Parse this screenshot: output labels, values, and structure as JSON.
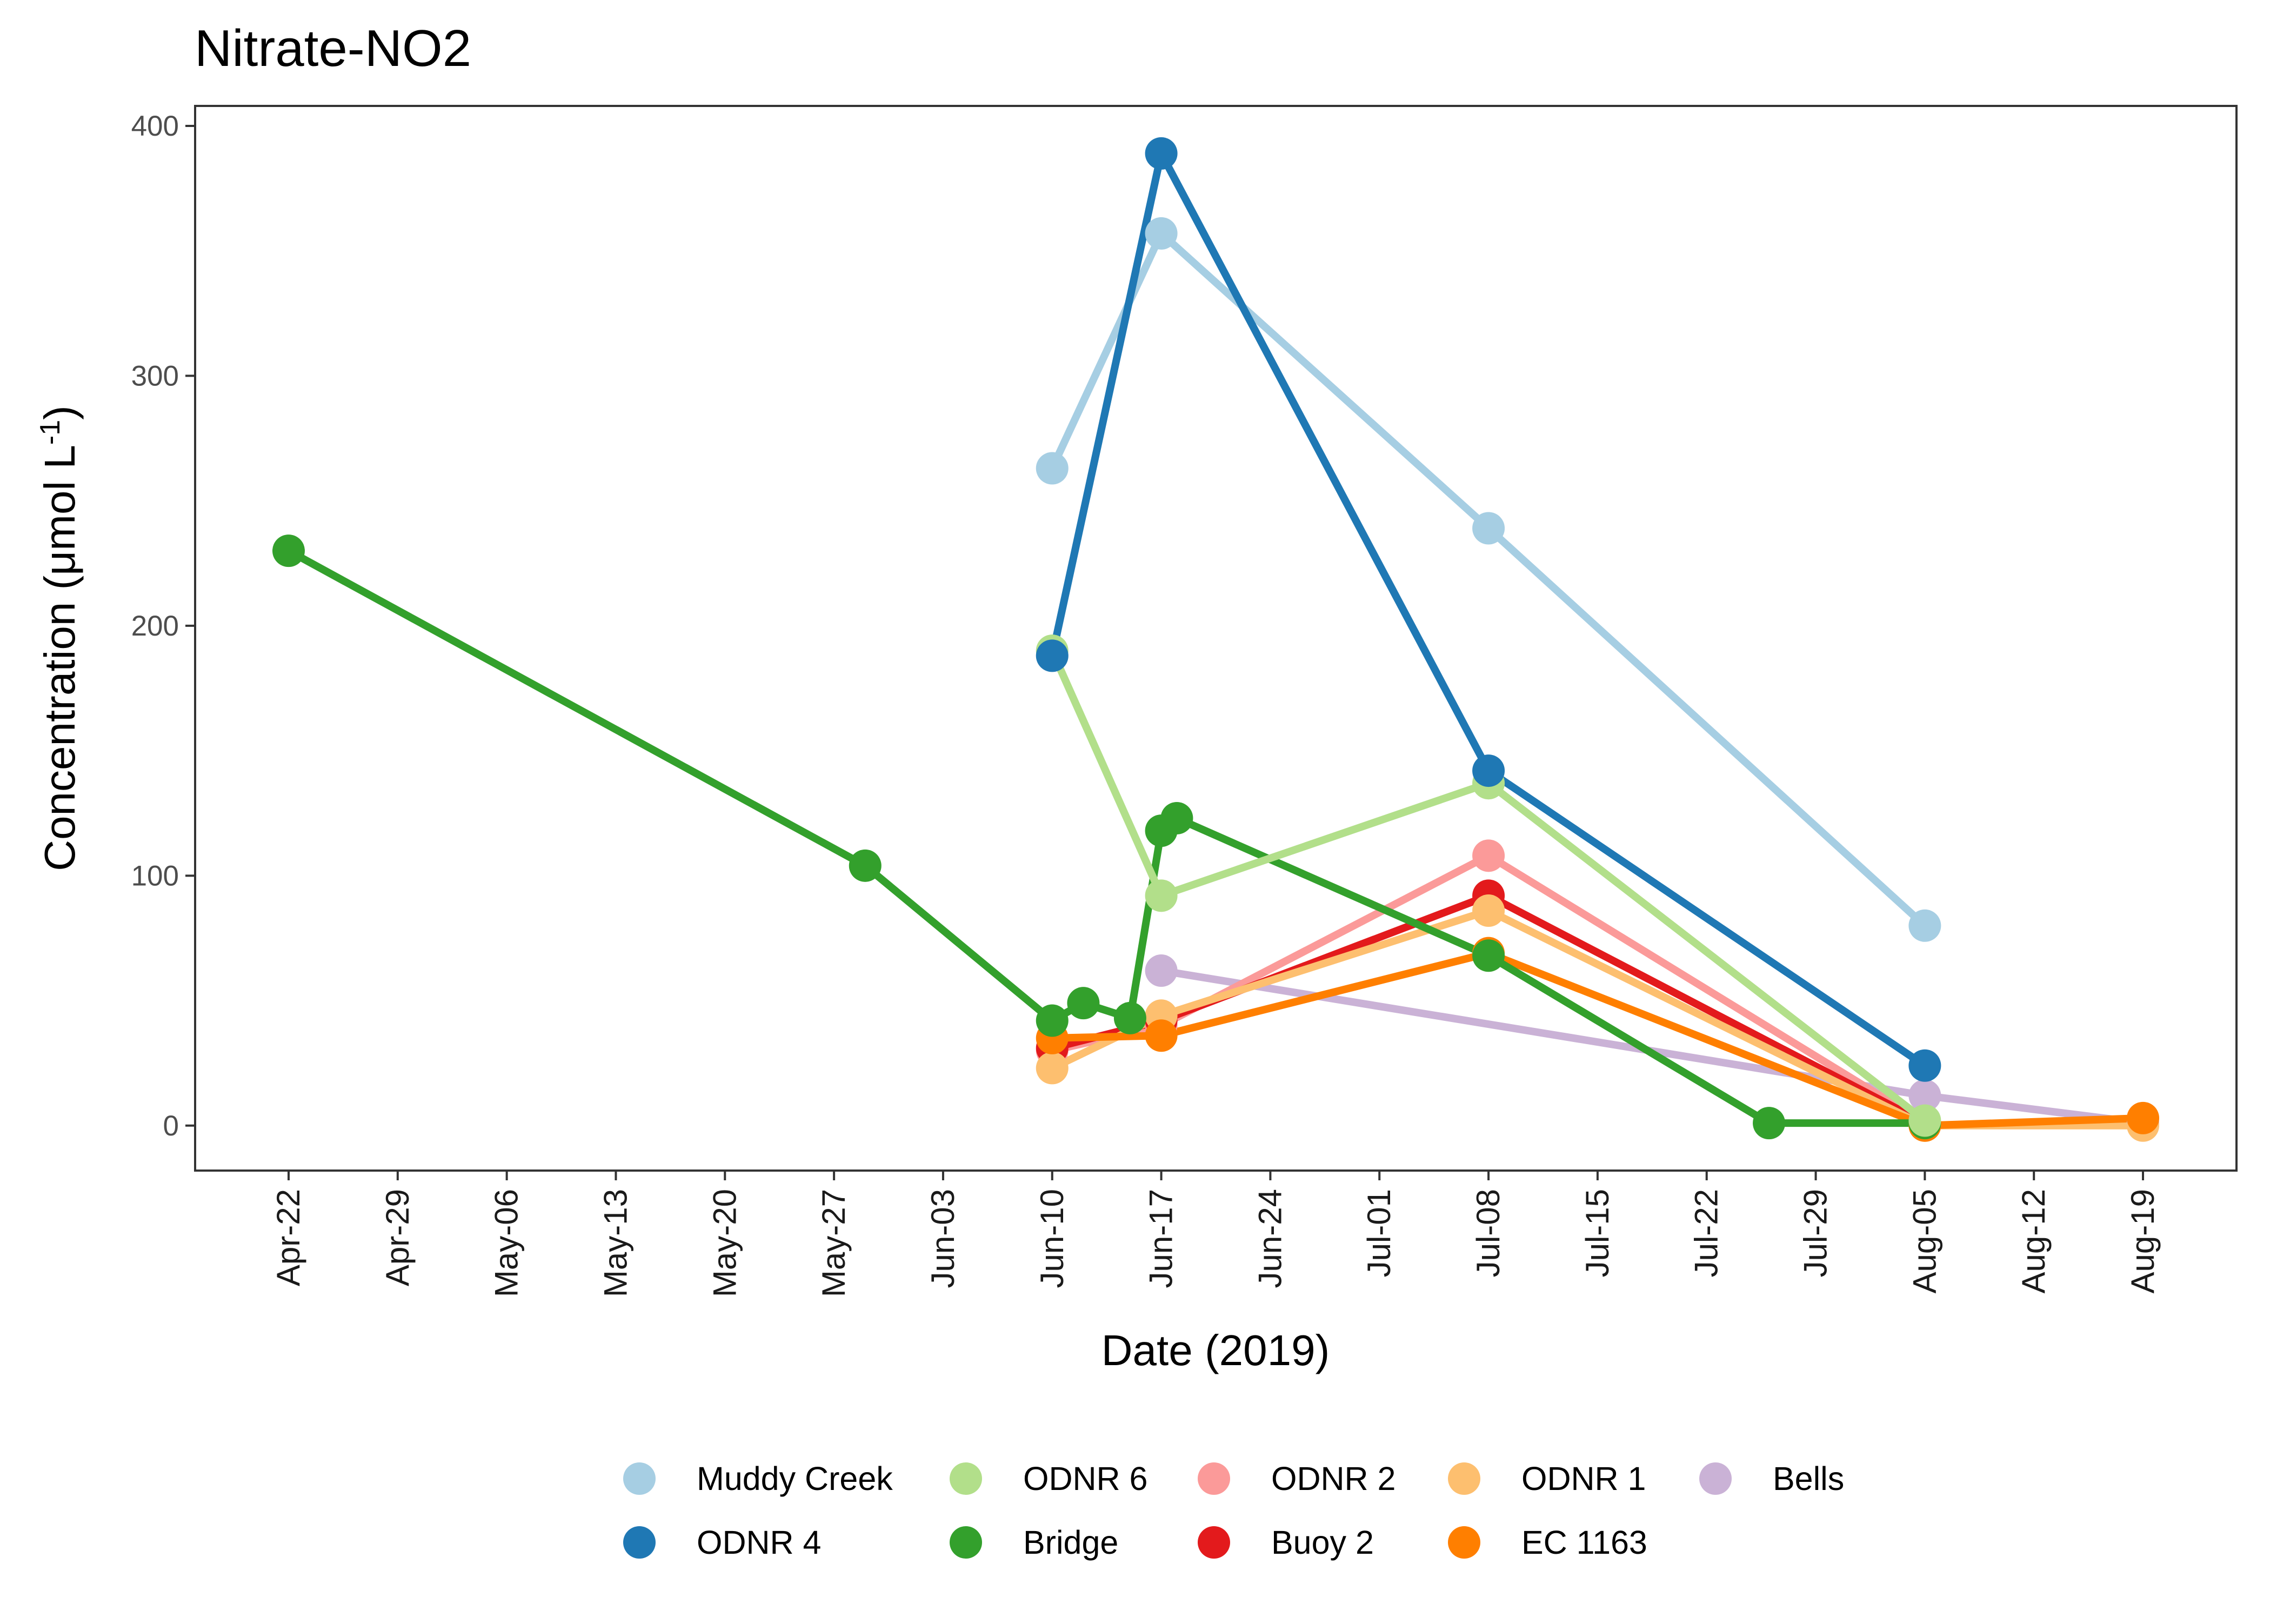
{
  "chart_data": {
    "type": "line",
    "title": "Nitrate-NO2",
    "xlabel": "Date (2019)",
    "ylabel": "Concentration (μmol L⁻¹)",
    "ylabel_parts": {
      "pre": "Concentration (",
      "unit": "μmol L",
      "sup": "-1",
      "post": ")"
    },
    "ylim": [
      -18,
      408
    ],
    "y_ticks": [
      0,
      100,
      200,
      300,
      400
    ],
    "xlim": [
      "2019-04-16",
      "2019-08-25"
    ],
    "x_ticks": [
      "2019-04-22",
      "2019-04-29",
      "2019-05-06",
      "2019-05-13",
      "2019-05-20",
      "2019-05-27",
      "2019-06-03",
      "2019-06-10",
      "2019-06-17",
      "2019-06-24",
      "2019-07-01",
      "2019-07-08",
      "2019-07-15",
      "2019-07-22",
      "2019-07-29",
      "2019-08-05",
      "2019-08-12",
      "2019-08-19"
    ],
    "x_tick_labels": [
      "Apr-22",
      "Apr-29",
      "May-06",
      "May-13",
      "May-20",
      "May-27",
      "Jun-03",
      "Jun-10",
      "Jun-17",
      "Jun-24",
      "Jul-01",
      "Jul-08",
      "Jul-15",
      "Jul-22",
      "Jul-29",
      "Aug-05",
      "Aug-12",
      "Aug-19"
    ],
    "grid": false,
    "legend_position": "bottom",
    "series": [
      {
        "name": "Bells",
        "color": "#cab2d6",
        "points": [
          [
            "2019-06-17",
            62
          ],
          [
            "2019-08-05",
            12
          ],
          [
            "2019-08-19",
            1
          ]
        ]
      },
      {
        "name": "ODNR 2",
        "color": "#fb9a99",
        "points": [
          [
            "2019-06-10",
            30
          ],
          [
            "2019-06-17",
            40
          ],
          [
            "2019-07-08",
            108
          ],
          [
            "2019-08-05",
            1
          ]
        ]
      },
      {
        "name": "Buoy 2",
        "color": "#e31a1c",
        "points": [
          [
            "2019-06-10",
            31
          ],
          [
            "2019-06-17",
            42
          ],
          [
            "2019-07-08",
            92
          ],
          [
            "2019-08-05",
            1
          ]
        ]
      },
      {
        "name": "ODNR 1",
        "color": "#fdbf6f",
        "points": [
          [
            "2019-06-10",
            23
          ],
          [
            "2019-06-17",
            44
          ],
          [
            "2019-07-08",
            86
          ],
          [
            "2019-08-05",
            0
          ],
          [
            "2019-08-19",
            0
          ]
        ]
      },
      {
        "name": "EC 1163",
        "color": "#ff7f00",
        "points": [
          [
            "2019-06-10",
            35
          ],
          [
            "2019-06-17",
            36
          ],
          [
            "2019-07-08",
            69
          ],
          [
            "2019-08-05",
            0
          ],
          [
            "2019-08-19",
            3
          ]
        ]
      },
      {
        "name": "Bridge",
        "color": "#33a02c",
        "points": [
          [
            "2019-04-22",
            230
          ],
          [
            "2019-05-29",
            104
          ],
          [
            "2019-06-10",
            42
          ],
          [
            "2019-06-12",
            49
          ],
          [
            "2019-06-15",
            43
          ],
          [
            "2019-06-17",
            118
          ],
          [
            "2019-06-18",
            123
          ],
          [
            "2019-07-08",
            68
          ],
          [
            "2019-07-26",
            1
          ],
          [
            "2019-08-05",
            1
          ]
        ]
      },
      {
        "name": "ODNR 6",
        "color": "#b2df8a",
        "points": [
          [
            "2019-06-10",
            190
          ],
          [
            "2019-06-17",
            92
          ],
          [
            "2019-07-08",
            137
          ],
          [
            "2019-08-05",
            2
          ]
        ]
      },
      {
        "name": "Muddy Creek",
        "color": "#a6cee3",
        "points": [
          [
            "2019-06-10",
            263
          ],
          [
            "2019-06-17",
            357
          ],
          [
            "2019-07-08",
            239
          ],
          [
            "2019-08-05",
            80
          ]
        ]
      },
      {
        "name": "ODNR 4",
        "color": "#1f78b4",
        "points": [
          [
            "2019-06-10",
            188
          ],
          [
            "2019-06-17",
            389
          ],
          [
            "2019-07-08",
            142
          ],
          [
            "2019-08-05",
            24
          ]
        ]
      }
    ],
    "legend": [
      [
        "Muddy Creek",
        "ODNR 6",
        "ODNR 2",
        "ODNR 1",
        "Bells"
      ],
      [
        "ODNR 4",
        "Bridge",
        "Buoy 2",
        "EC 1163"
      ]
    ]
  }
}
